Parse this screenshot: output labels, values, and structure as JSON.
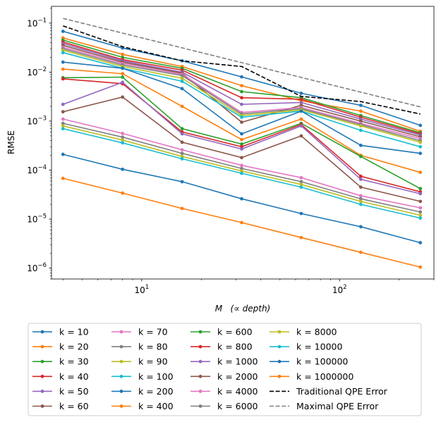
{
  "chart_data": {
    "type": "line",
    "title": "",
    "xlabel": "M   (∝ depth)",
    "ylabel": "RMSE",
    "xscale": "log",
    "yscale": "log",
    "xlim": [
      3.5,
      300
    ],
    "ylim": [
      6e-07,
      0.22
    ],
    "x": [
      4,
      8,
      16,
      32,
      64,
      128,
      256
    ],
    "x_ticks": [
      {
        "value": 10,
        "base": "10",
        "exp": "1"
      },
      {
        "value": 100,
        "base": "10",
        "exp": "2"
      }
    ],
    "y_ticks": [
      {
        "value": 1e-06,
        "base": "10",
        "exp": "−6"
      },
      {
        "value": 1e-05,
        "base": "10",
        "exp": "−5"
      },
      {
        "value": 0.0001,
        "base": "10",
        "exp": "−4"
      },
      {
        "value": 0.001,
        "base": "10",
        "exp": "−3"
      },
      {
        "value": 0.01,
        "base": "10",
        "exp": "−2"
      },
      {
        "value": 0.1,
        "base": "10",
        "exp": "−1"
      }
    ],
    "legend_position": "below",
    "series": [
      {
        "name": "k = 10",
        "color": "#1f77b4",
        "style": "marker",
        "values": [
          0.068,
          0.031,
          0.017,
          0.008,
          0.0037,
          0.0021,
          0.00082
        ]
      },
      {
        "name": "k = 20",
        "color": "#ff7f0e",
        "style": "marker",
        "values": [
          0.05,
          0.023,
          0.013,
          0.0053,
          0.0026,
          0.0016,
          0.00062
        ]
      },
      {
        "name": "k = 30",
        "color": "#2ca02c",
        "style": "marker",
        "values": [
          0.045,
          0.02,
          0.012,
          0.004,
          0.003,
          0.0013,
          0.00058
        ]
      },
      {
        "name": "k = 40",
        "color": "#d62728",
        "style": "marker",
        "values": [
          0.041,
          0.018,
          0.011,
          0.003,
          0.0028,
          0.0012,
          0.00055
        ]
      },
      {
        "name": "k = 50",
        "color": "#9467bd",
        "style": "marker",
        "values": [
          0.038,
          0.017,
          0.01,
          0.0022,
          0.0024,
          0.0011,
          0.00052
        ]
      },
      {
        "name": "k = 60",
        "color": "#8c564b",
        "style": "marker",
        "values": [
          0.035,
          0.016,
          0.0095,
          0.00095,
          0.0021,
          0.001,
          0.00048
        ]
      },
      {
        "name": "k = 70",
        "color": "#e377c2",
        "style": "marker",
        "values": [
          0.032,
          0.015,
          0.009,
          0.0015,
          0.0019,
          0.0009,
          0.00044
        ]
      },
      {
        "name": "k = 80",
        "color": "#7f7f7f",
        "style": "marker",
        "values": [
          0.03,
          0.014,
          0.0085,
          0.0014,
          0.0018,
          0.00085,
          0.0004
        ]
      },
      {
        "name": "k = 90",
        "color": "#bcbd22",
        "style": "marker",
        "values": [
          0.028,
          0.013,
          0.0075,
          0.0013,
          0.0017,
          0.0008,
          0.00037
        ]
      },
      {
        "name": "k = 100",
        "color": "#17becf",
        "style": "marker",
        "values": [
          0.025,
          0.012,
          0.0065,
          0.0012,
          0.0016,
          0.00065,
          0.0003
        ]
      },
      {
        "name": "k = 200",
        "color": "#1f77b4",
        "style": "marker",
        "values": [
          0.016,
          0.012,
          0.0046,
          0.00055,
          0.0016,
          0.00032,
          0.00022
        ]
      },
      {
        "name": "k = 400",
        "color": "#ff7f0e",
        "style": "marker",
        "values": [
          0.0115,
          0.0093,
          0.002,
          0.00042,
          0.0011,
          0.0002,
          9e-05
        ]
      },
      {
        "name": "k = 600",
        "color": "#2ca02c",
        "style": "marker",
        "values": [
          0.0077,
          0.0079,
          0.0007,
          0.00034,
          0.0009,
          0.00019,
          4.2e-05
        ]
      },
      {
        "name": "k = 800",
        "color": "#d62728",
        "style": "marker",
        "values": [
          0.0073,
          0.0058,
          0.0006,
          0.0003,
          0.00085,
          7.5e-05,
          3.6e-05
        ]
      },
      {
        "name": "k = 1000",
        "color": "#9467bd",
        "style": "marker",
        "values": [
          0.0022,
          0.0062,
          0.00055,
          0.00027,
          0.0008,
          6.5e-05,
          3.3e-05
        ]
      },
      {
        "name": "k = 2000",
        "color": "#8c564b",
        "style": "marker",
        "values": [
          0.00155,
          0.0031,
          0.00037,
          0.00018,
          0.0005,
          4.5e-05,
          2.3e-05
        ]
      },
      {
        "name": "k = 4000",
        "color": "#e377c2",
        "style": "marker",
        "values": [
          0.0011,
          0.00056,
          0.00026,
          0.000125,
          7e-05,
          3e-05,
          1.7e-05
        ]
      },
      {
        "name": "k = 6000",
        "color": "#7f7f7f",
        "style": "marker",
        "values": [
          0.0009,
          0.00047,
          0.00022,
          0.000108,
          5.8e-05,
          2.6e-05,
          1.4e-05
        ]
      },
      {
        "name": "k = 8000",
        "color": "#bcbd22",
        "style": "marker",
        "values": [
          0.0008,
          0.00041,
          0.00019,
          9.6e-05,
          5.1e-05,
          2.3e-05,
          1.2e-05
        ]
      },
      {
        "name": "k = 10000",
        "color": "#17becf",
        "style": "marker",
        "values": [
          0.0007,
          0.00036,
          0.00017,
          8.6e-05,
          4.5e-05,
          2e-05,
          1.05e-05
        ]
      },
      {
        "name": "k = 100000",
        "color": "#1f77b4",
        "style": "marker",
        "values": [
          0.00021,
          0.000104,
          5.8e-05,
          2.6e-05,
          1.3e-05,
          7e-06,
          3.3e-06
        ]
      },
      {
        "name": "k = 1000000",
        "color": "#ff7f0e",
        "style": "marker",
        "values": [
          6.8e-05,
          3.4e-05,
          1.65e-05,
          8.5e-06,
          4.2e-06,
          2.1e-06,
          1.05e-06
        ]
      },
      {
        "name": "Traditional QPE Error",
        "color": "#000000",
        "style": "dashed",
        "values": [
          0.088,
          0.033,
          0.017,
          0.013,
          0.0032,
          0.0025,
          0.0014
        ]
      },
      {
        "name": "Maximal QPE Error",
        "color": "#808080",
        "style": "dashed",
        "values": [
          0.125,
          0.0625,
          0.03125,
          0.0156,
          0.0078,
          0.0039,
          0.00195
        ]
      }
    ]
  }
}
